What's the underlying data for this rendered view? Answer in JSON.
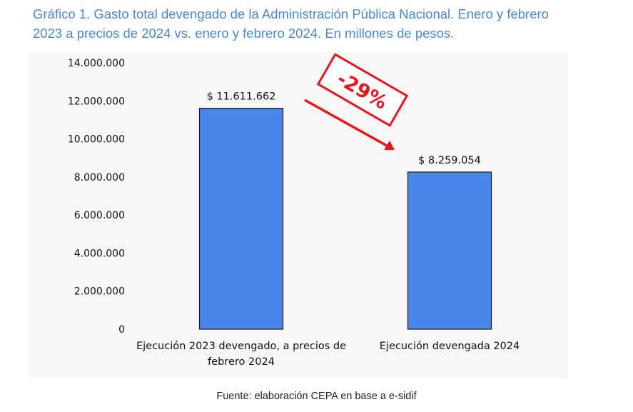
{
  "page": {
    "title_line1": "Gráfico 1. Gasto total devengado de la Administración Pública Nacional. Enero y febrero",
    "title_line2": "2023 a precios de 2024 vs. enero y febrero 2024. En millones de pesos.",
    "source": "Fuente: elaboración CEPA en base a e-sidif"
  },
  "colors": {
    "bar": "#4a86e8",
    "title": "#4a86d8",
    "annotation": "#e8161b"
  },
  "chart_data": {
    "type": "bar",
    "title": "Gráfico 1. Gasto total devengado de la Administración Pública Nacional. Enero y febrero 2023 a precios de 2024 vs. enero y febrero 2024. En millones de pesos.",
    "xlabel": "",
    "ylabel": "",
    "ylim": [
      0,
      14000000
    ],
    "yticks": [
      0,
      2000000,
      4000000,
      6000000,
      8000000,
      10000000,
      12000000,
      14000000
    ],
    "ytick_labels": [
      "0",
      "2.000.000",
      "4.000.000",
      "6.000.000",
      "8.000.000",
      "10.000.000",
      "12.000.000",
      "14.000.000"
    ],
    "categories": [
      [
        "Ejecución 2023 devengado, a precios de",
        "febrero 2024"
      ],
      [
        "Ejecución devengada 2024"
      ]
    ],
    "values": [
      11611662,
      8259054
    ],
    "data_labels": [
      "$ 11.611.662",
      "$ 8.259.054"
    ],
    "annotation": {
      "text": "-29%",
      "type": "arrow-from-first-to-second-bar"
    },
    "grid": false,
    "legend": "none"
  }
}
